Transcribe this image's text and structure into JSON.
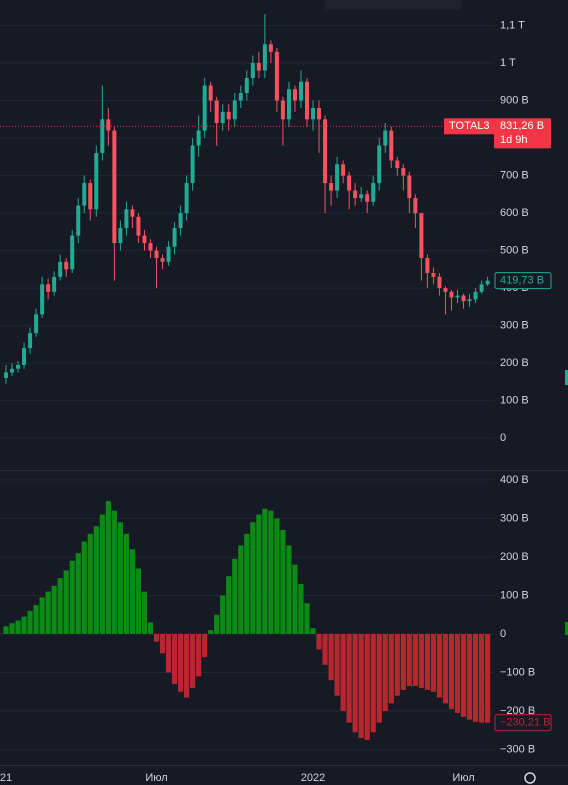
{
  "chart_data": [
    {
      "type": "candlestick",
      "up_color": "#22ab94",
      "down_color": "#f7525f",
      "grid": true,
      "categories": [
        "21",
        null,
        null,
        null,
        null,
        null,
        null,
        null,
        null,
        null,
        null,
        null,
        null,
        null,
        null,
        null,
        null,
        null,
        null,
        null,
        null,
        null,
        null,
        null,
        null,
        "Июл",
        null,
        null,
        null,
        null,
        null,
        null,
        null,
        null,
        null,
        null,
        null,
        null,
        null,
        null,
        null,
        null,
        null,
        null,
        null,
        null,
        null,
        null,
        null,
        null,
        null,
        "2022",
        null,
        null,
        null,
        null,
        null,
        null,
        null,
        null,
        null,
        null,
        null,
        null,
        null,
        null,
        null,
        null,
        null,
        null,
        null,
        null,
        null,
        null,
        null,
        null,
        "Июл",
        null,
        null,
        null,
        null
      ],
      "open": [
        160,
        175,
        185,
        195,
        240,
        280,
        330,
        410,
        390,
        430,
        470,
        450,
        540,
        620,
        680,
        610,
        760,
        850,
        820,
        520,
        560,
        610,
        590,
        540,
        520,
        500,
        480,
        470,
        510,
        560,
        600,
        680,
        780,
        820,
        940,
        900,
        840,
        870,
        850,
        900,
        920,
        960,
        1000,
        980,
        1050,
        1030,
        900,
        850,
        930,
        900,
        950,
        850,
        880,
        850,
        680,
        660,
        730,
        700,
        660,
        640,
        650,
        630,
        680,
        780,
        820,
        740,
        720,
        700,
        640,
        600,
        480,
        440,
        430,
        400,
        390,
        375,
        380,
        365,
        370,
        390,
        410
      ],
      "high": [
        195,
        200,
        205,
        255,
        295,
        345,
        430,
        425,
        445,
        490,
        480,
        555,
        640,
        700,
        690,
        780,
        940,
        880,
        830,
        580,
        630,
        620,
        600,
        555,
        530,
        510,
        490,
        525,
        575,
        620,
        700,
        800,
        860,
        960,
        950,
        910,
        890,
        890,
        920,
        940,
        980,
        1020,
        1030,
        1130,
        1060,
        1040,
        910,
        950,
        940,
        980,
        960,
        900,
        900,
        860,
        700,
        750,
        740,
        710,
        680,
        670,
        660,
        700,
        800,
        840,
        830,
        750,
        730,
        710,
        650,
        600,
        490,
        455,
        440,
        405,
        395,
        395,
        385,
        385,
        400,
        420,
        430
      ],
      "low": [
        145,
        165,
        175,
        185,
        225,
        270,
        320,
        370,
        380,
        420,
        430,
        440,
        520,
        600,
        580,
        590,
        740,
        780,
        420,
        500,
        540,
        560,
        520,
        500,
        480,
        400,
        450,
        460,
        490,
        540,
        580,
        660,
        750,
        800,
        870,
        780,
        820,
        820,
        830,
        880,
        900,
        940,
        960,
        960,
        1000,
        870,
        780,
        830,
        870,
        880,
        830,
        820,
        760,
        600,
        620,
        640,
        680,
        610,
        620,
        630,
        600,
        620,
        660,
        760,
        720,
        700,
        660,
        600,
        560,
        420,
        400,
        410,
        380,
        330,
        340,
        360,
        345,
        350,
        360,
        385,
        405
      ],
      "close": [
        175,
        185,
        195,
        240,
        280,
        330,
        410,
        390,
        430,
        470,
        450,
        540,
        620,
        680,
        610,
        760,
        850,
        820,
        520,
        560,
        610,
        590,
        540,
        520,
        500,
        480,
        470,
        510,
        560,
        600,
        680,
        780,
        820,
        940,
        900,
        840,
        870,
        850,
        900,
        920,
        960,
        1000,
        980,
        1050,
        1030,
        900,
        850,
        930,
        900,
        950,
        850,
        880,
        850,
        680,
        660,
        730,
        700,
        660,
        640,
        650,
        630,
        680,
        780,
        820,
        740,
        720,
        700,
        640,
        600,
        480,
        440,
        430,
        400,
        390,
        375,
        380,
        365,
        370,
        390,
        410,
        419.73
      ],
      "last_value_label": "419,73 B",
      "ylim": [
        -85,
        1168
      ],
      "yticks": [
        0,
        {
          "value": 100,
          "label": "100 B"
        },
        {
          "value": 200,
          "label": "200 B"
        },
        {
          "value": 300,
          "label": "300 B"
        },
        {
          "value": 400,
          "label": "400 B"
        },
        {
          "value": 500,
          "label": "500 B"
        },
        {
          "value": 600,
          "label": "600 B"
        },
        {
          "value": 700,
          "label": "700 B"
        },
        {
          "value": 800,
          "label": "800 B"
        },
        {
          "value": 900,
          "label": "900 B"
        },
        {
          "value": 1000,
          "label": "1 T"
        },
        {
          "value": 1100,
          "label": "1,1 T"
        }
      ],
      "reference_line": {
        "symbol": "TOTAL3",
        "value": 831.26,
        "label": "831,26 B",
        "countdown": "1d 9h",
        "color": "#f23645"
      }
    },
    {
      "type": "histogram",
      "positive_color": "#0b8a14",
      "negative_color": "#b8262f",
      "grid": true,
      "values": [
        20,
        28,
        35,
        45,
        60,
        75,
        95,
        110,
        125,
        145,
        165,
        190,
        210,
        240,
        260,
        280,
        310,
        345,
        320,
        290,
        260,
        220,
        170,
        110,
        30,
        -20,
        -50,
        -100,
        -130,
        -150,
        -165,
        -140,
        -110,
        -60,
        10,
        50,
        100,
        150,
        195,
        230,
        260,
        290,
        310,
        325,
        320,
        300,
        270,
        230,
        180,
        130,
        80,
        15,
        -40,
        -80,
        -120,
        -160,
        -200,
        -230,
        -255,
        -270,
        -275,
        -255,
        -230,
        -200,
        -180,
        -160,
        -145,
        -135,
        -135,
        -140,
        -145,
        -150,
        -165,
        -180,
        -195,
        -205,
        -215,
        -222,
        -228,
        -230,
        -230.21
      ],
      "last_value_label": "−230,21 B",
      "ylim": [
        -340,
        423
      ],
      "yticks": [
        {
          "value": 400,
          "label": "400 B"
        },
        {
          "value": 300,
          "label": "300 B"
        },
        {
          "value": 200,
          "label": "200 B"
        },
        {
          "value": 100,
          "label": "100 B"
        },
        0,
        {
          "value": -100,
          "label": "−100 B"
        },
        {
          "value": -200,
          "label": "−200 B"
        },
        {
          "value": -300,
          "label": "−300 B"
        }
      ]
    }
  ]
}
